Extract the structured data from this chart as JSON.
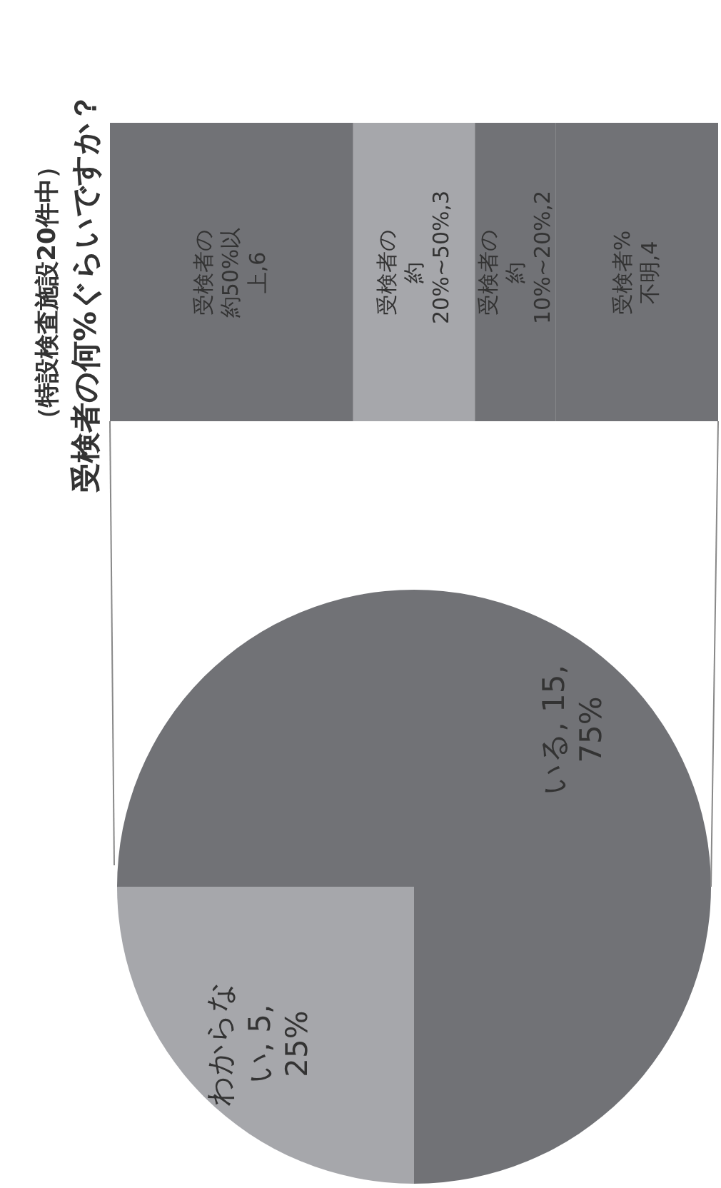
{
  "chart_data": [
    {
      "type": "pie",
      "title": "受検者の何%ぐらいですか？",
      "subtitle": "（特設検査施設20件中）",
      "categories": [
        "いる",
        "わからない"
      ],
      "values": [
        15,
        5
      ],
      "colors": [
        "#717276",
        "#a6a7ab"
      ],
      "value_labels": [
        ", 15, 75%",
        ", 5, 25%"
      ]
    },
    {
      "type": "bar",
      "stacked": true,
      "orientation": "horizontal",
      "categories": [
        null
      ],
      "series": [
        {
          "name": "受検者の約50%以上",
          "color": "#717276",
          "values": [
            6
          ],
          "value_labels": [
            ",6"
          ]
        },
        {
          "name": "受検者の約 20%~50%",
          "color": "#a6a7ab",
          "values": [
            3
          ],
          "value_labels": [
            ",3"
          ]
        },
        {
          "name": "受検者の約 10%~20%",
          "color": "#717276",
          "values": [
            2
          ],
          "value_labels": [
            ",2"
          ]
        },
        {
          "name": "受検者%不明",
          "color": "#717276",
          "values": [
            4
          ],
          "value_labels": [
            ",4"
          ]
        }
      ]
    }
  ]
}
